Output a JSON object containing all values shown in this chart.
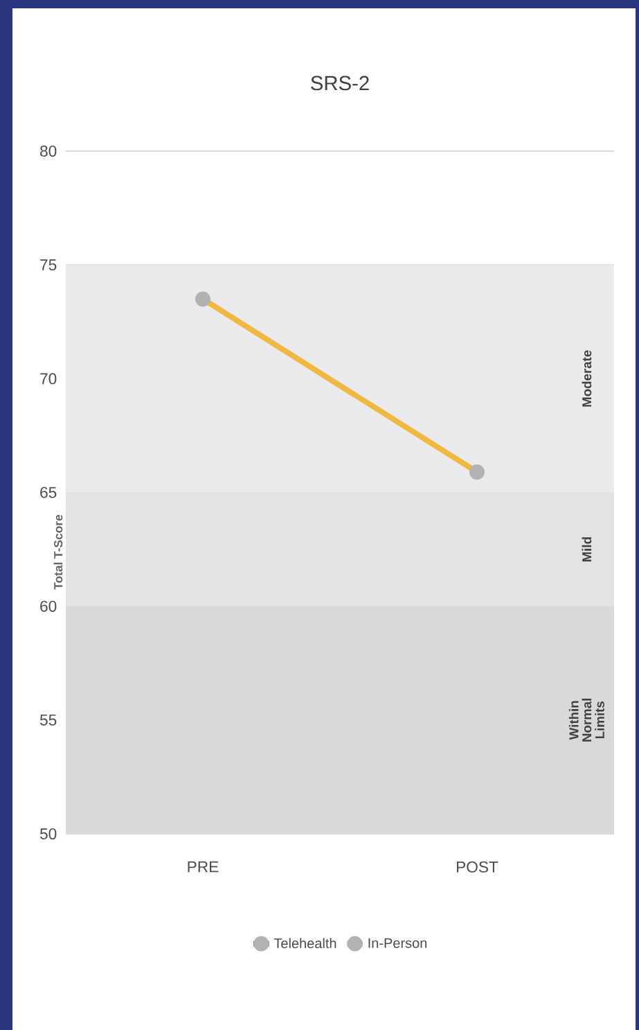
{
  "chart_data": {
    "type": "line",
    "title": "SRS-2",
    "ylabel": "Total T-Score",
    "categories": [
      "PRE",
      "POST"
    ],
    "series": [
      {
        "name": "Telehealth",
        "color": "#4472c4",
        "values": [
          null,
          null
        ]
      },
      {
        "name": "In-Person",
        "color": "#f0b840",
        "values": [
          73.5,
          65.9
        ]
      }
    ],
    "ylim": [
      50,
      80
    ],
    "yticks": [
      50,
      55,
      60,
      65,
      70,
      75,
      80
    ],
    "bands": [
      {
        "axis": "y",
        "from": 50,
        "to": 60,
        "label": "Within Normal Limits",
        "color": "#d9d8da"
      },
      {
        "axis": "y",
        "from": 60,
        "to": 65,
        "label": "Mild",
        "color": "#e3e2e4"
      },
      {
        "axis": "y",
        "from": 65,
        "to": 75,
        "label": "Moderate",
        "color": "#ebeaec"
      }
    ],
    "grid": "y",
    "legend": "bottom",
    "marker": "circle",
    "line_style": "solid"
  }
}
